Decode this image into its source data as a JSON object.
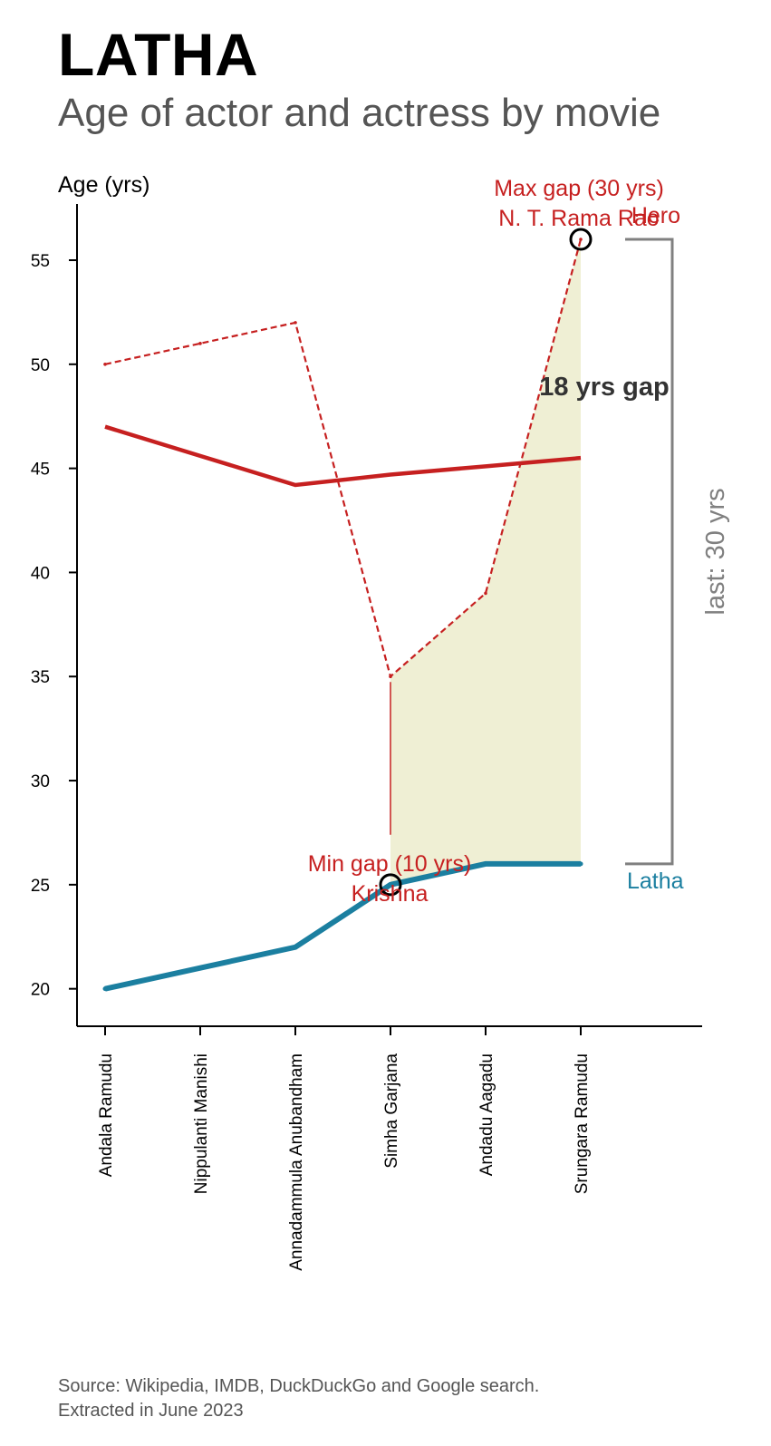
{
  "title": "LATHA",
  "subtitle": "Age of actor and actress by movie",
  "source_lines": [
    "Source: Wikipedia, IMDB, DuckDuckGo and Google search.",
    "Extracted in June 2023"
  ],
  "chart_data": {
    "type": "line",
    "ylabel": "Age (yrs)",
    "xlabel": "",
    "ylim": [
      18.2,
      57.7
    ],
    "yticks": [
      20,
      25,
      30,
      35,
      40,
      45,
      50,
      55
    ],
    "categories": [
      "Andala Ramudu",
      "Nippulanti Manishi",
      "Annadammula Anubandham",
      "Simha Garjana",
      "Andadu Aagadu",
      "Srungara Ramudu"
    ],
    "series": [
      {
        "name": "Latha",
        "role": "actress",
        "color": "#1b7fa0",
        "values": [
          20,
          21,
          22,
          25,
          26,
          26
        ]
      },
      {
        "name": "Hero",
        "role": "actor",
        "color": "#c62020",
        "values": [
          50,
          51,
          52,
          35,
          39,
          56
        ]
      },
      {
        "role": "actor-trend",
        "color": "#c62020",
        "values": [
          47,
          45.6,
          44.2,
          44.7,
          45.1,
          45.5
        ]
      }
    ],
    "annotations": {
      "max_gap": {
        "label": "Max gap (30 yrs)",
        "actor": "N. T. Rama Rao",
        "category_index": 5,
        "value": 56
      },
      "min_gap": {
        "label": "Min gap (10 yrs)",
        "actor": "Krishna",
        "category_index": 3,
        "value": 25
      },
      "gap_label": "18 yrs gap",
      "last_label": "last: 30 yrs",
      "hero_label": "Hero",
      "actress_label": "Latha"
    },
    "colors": {
      "actress": "#1b7fa0",
      "actor": "#c62020",
      "shade": "#efefd4",
      "bracket": "#808080",
      "axis": "#000000"
    }
  }
}
